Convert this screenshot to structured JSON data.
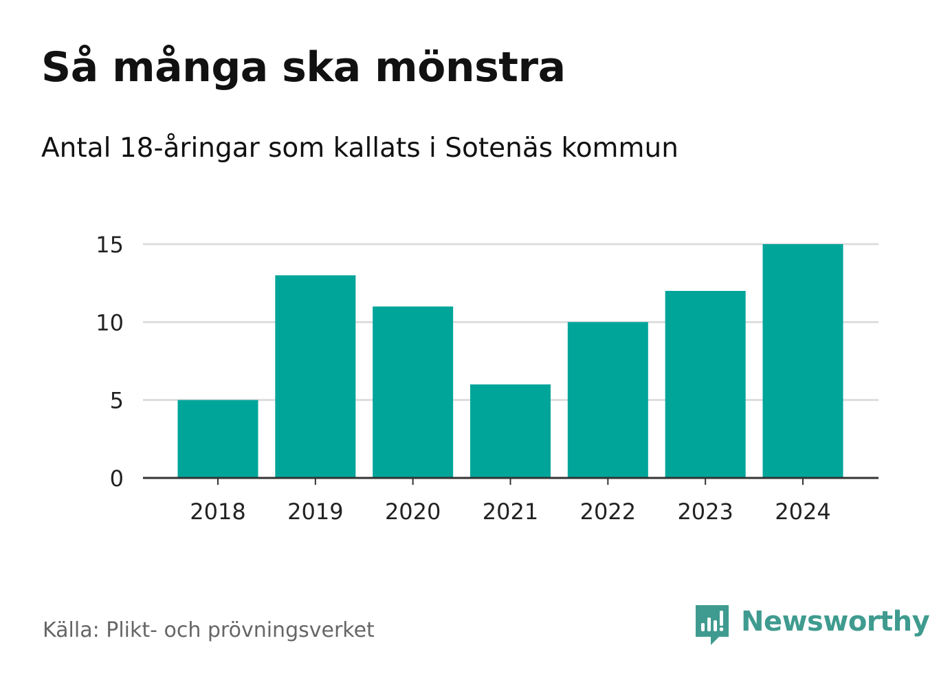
{
  "header": {
    "title": "Så många ska mönstra",
    "subtitle": "Antal 18-åringar som kallats i Sotenäs kommun"
  },
  "footer": {
    "source": "Källa: Plikt- och prövningsverket",
    "brand": "Newsworthy",
    "brand_icon": "bar-chart-speech-bubble-icon"
  },
  "colors": {
    "bar": "#00a59a",
    "gridline": "#dddddd",
    "axis": "#333333",
    "tick_text": "#222222",
    "brand": "#3f9b8f"
  },
  "chart_data": {
    "type": "bar",
    "title": "Så många ska mönstra",
    "subtitle": "Antal 18-åringar som kallats i Sotenäs kommun",
    "categories": [
      "2018",
      "2019",
      "2020",
      "2021",
      "2022",
      "2023",
      "2024"
    ],
    "values": [
      5,
      13,
      11,
      6,
      10,
      12,
      15
    ],
    "xlabel": "",
    "ylabel": "",
    "ylim": [
      0,
      15
    ],
    "yticks": [
      0,
      5,
      10,
      15
    ],
    "grid": true,
    "legend": "none"
  }
}
